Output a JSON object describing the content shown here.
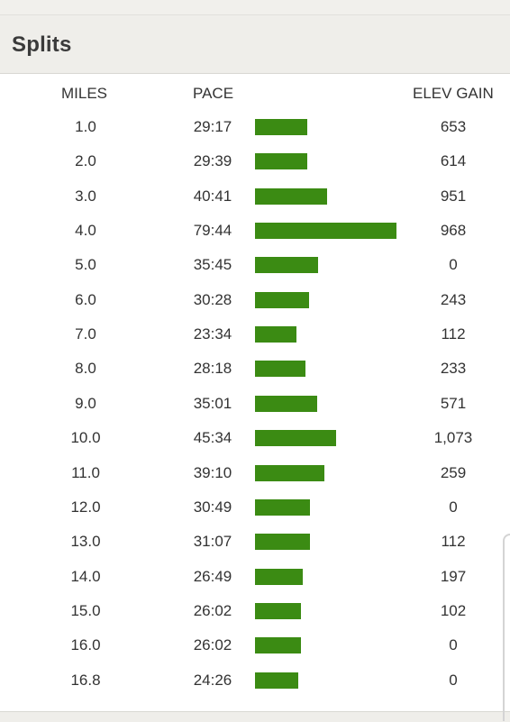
{
  "header": {
    "title": "Splits"
  },
  "columns": {
    "miles": "MILES",
    "pace": "PACE",
    "elev": "ELEV GAIN"
  },
  "bar_color": "#3b8b13",
  "splits": [
    {
      "miles": "1.0",
      "pace": "29:17",
      "pace_min": 29.28,
      "elev": "653"
    },
    {
      "miles": "2.0",
      "pace": "29:39",
      "pace_min": 29.65,
      "elev": "614"
    },
    {
      "miles": "3.0",
      "pace": "40:41",
      "pace_min": 40.68,
      "elev": "951"
    },
    {
      "miles": "4.0",
      "pace": "79:44",
      "pace_min": 79.73,
      "elev": "968"
    },
    {
      "miles": "5.0",
      "pace": "35:45",
      "pace_min": 35.75,
      "elev": "0"
    },
    {
      "miles": "6.0",
      "pace": "30:28",
      "pace_min": 30.47,
      "elev": "243"
    },
    {
      "miles": "7.0",
      "pace": "23:34",
      "pace_min": 23.57,
      "elev": "112"
    },
    {
      "miles": "8.0",
      "pace": "28:18",
      "pace_min": 28.3,
      "elev": "233"
    },
    {
      "miles": "9.0",
      "pace": "35:01",
      "pace_min": 35.02,
      "elev": "571"
    },
    {
      "miles": "10.0",
      "pace": "45:34",
      "pace_min": 45.57,
      "elev": "1,073"
    },
    {
      "miles": "11.0",
      "pace": "39:10",
      "pace_min": 39.17,
      "elev": "259"
    },
    {
      "miles": "12.0",
      "pace": "30:49",
      "pace_min": 30.82,
      "elev": "0"
    },
    {
      "miles": "13.0",
      "pace": "31:07",
      "pace_min": 31.12,
      "elev": "112"
    },
    {
      "miles": "14.0",
      "pace": "26:49",
      "pace_min": 26.82,
      "elev": "197"
    },
    {
      "miles": "15.0",
      "pace": "26:02",
      "pace_min": 26.03,
      "elev": "102"
    },
    {
      "miles": "16.0",
      "pace": "26:02",
      "pace_min": 26.03,
      "elev": "0"
    },
    {
      "miles": "16.8",
      "pace": "24:26",
      "pace_min": 24.43,
      "elev": "0"
    }
  ]
}
